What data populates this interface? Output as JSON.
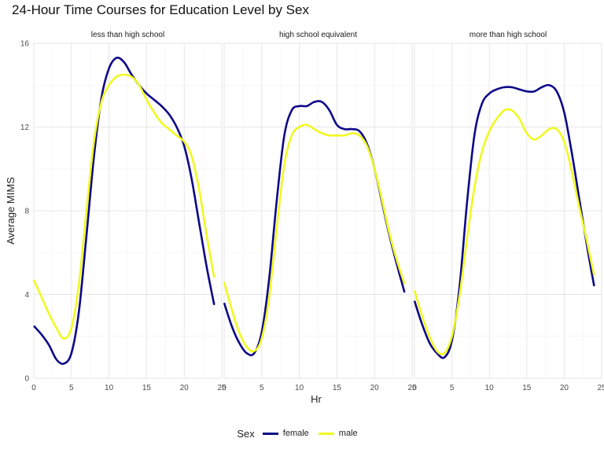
{
  "chart_data": {
    "type": "line",
    "title": "24-Hour Time Courses for Education Level by Sex",
    "xlabel": "Hr",
    "ylabel": "Average MIMS",
    "xlim": [
      0,
      25
    ],
    "ylim": [
      0,
      16
    ],
    "xticks": [
      "0",
      "5",
      "10",
      "15",
      "20",
      "25"
    ],
    "yticks": [
      "0",
      "4",
      "8",
      "12",
      "16"
    ],
    "grid": true,
    "legend": {
      "title": "Sex",
      "position": "bottom",
      "entries": [
        {
          "label": "female",
          "color": "#0d0887"
        },
        {
          "label": "male",
          "color": "#f0f921"
        }
      ]
    },
    "facets": [
      {
        "label": "less than high school",
        "series": [
          {
            "name": "female",
            "x": [
              0,
              1,
              2,
              3,
              4,
              5,
              6,
              7,
              8,
              9,
              10,
              11,
              12,
              13,
              14,
              15,
              16,
              17,
              18,
              19,
              20,
              21,
              22,
              23,
              24
            ],
            "y": [
              2.5,
              2.1,
              1.6,
              0.9,
              0.7,
              1.2,
              3.2,
              6.8,
              10.6,
              13.4,
              14.8,
              15.3,
              15.1,
              14.5,
              14.0,
              13.6,
              13.3,
              13.0,
              12.6,
              12.0,
              11.1,
              9.5,
              7.4,
              5.3,
              3.5
            ]
          },
          {
            "name": "male",
            "x": [
              0,
              1,
              2,
              3,
              4,
              5,
              6,
              7,
              8,
              9,
              10,
              11,
              12,
              13,
              14,
              15,
              16,
              17,
              18,
              19,
              20,
              21,
              22,
              23,
              24
            ],
            "y": [
              4.7,
              3.9,
              3.1,
              2.4,
              1.9,
              2.4,
              4.5,
              8.0,
              11.3,
              13.2,
              14.0,
              14.4,
              14.5,
              14.4,
              14.0,
              13.3,
              12.7,
              12.2,
              11.9,
              11.6,
              11.3,
              10.6,
              9.0,
              6.8,
              4.8
            ]
          }
        ]
      },
      {
        "label": "high school equivalent",
        "series": [
          {
            "name": "female",
            "x": [
              0,
              1,
              2,
              3,
              4,
              5,
              6,
              7,
              8,
              9,
              10,
              11,
              12,
              13,
              14,
              15,
              16,
              17,
              18,
              19,
              20,
              21,
              22,
              23,
              24
            ],
            "y": [
              3.6,
              2.5,
              1.7,
              1.2,
              1.2,
              2.2,
              4.8,
              8.5,
              11.6,
              12.8,
              13.0,
              13.0,
              13.2,
              13.2,
              12.8,
              12.1,
              11.9,
              11.9,
              11.8,
              11.2,
              10.0,
              8.4,
              6.8,
              5.4,
              4.1
            ]
          },
          {
            "name": "male",
            "x": [
              0,
              1,
              2,
              3,
              4,
              5,
              6,
              7,
              8,
              9,
              10,
              11,
              12,
              13,
              14,
              15,
              16,
              17,
              18,
              19,
              20,
              21,
              22,
              23,
              24
            ],
            "y": [
              4.6,
              3.3,
              2.2,
              1.5,
              1.3,
              1.9,
              3.9,
              7.2,
              10.2,
              11.6,
              12.0,
              12.1,
              11.9,
              11.7,
              11.6,
              11.6,
              11.6,
              11.7,
              11.6,
              11.1,
              10.0,
              8.5,
              6.9,
              5.6,
              4.5
            ]
          }
        ]
      },
      {
        "label": "more than high school",
        "series": [
          {
            "name": "female",
            "x": [
              0,
              1,
              2,
              3,
              4,
              5,
              6,
              7,
              8,
              9,
              10,
              11,
              12,
              13,
              14,
              15,
              16,
              17,
              18,
              19,
              20,
              21,
              22,
              23,
              24
            ],
            "y": [
              3.7,
              2.6,
              1.7,
              1.2,
              1.0,
              1.8,
              4.3,
              8.3,
              11.6,
              13.1,
              13.6,
              13.8,
              13.9,
              13.9,
              13.8,
              13.7,
              13.7,
              13.9,
              14.0,
              13.7,
              12.7,
              10.8,
              8.6,
              6.4,
              4.4
            ]
          },
          {
            "name": "male",
            "x": [
              0,
              1,
              2,
              3,
              4,
              5,
              6,
              7,
              8,
              9,
              10,
              11,
              12,
              13,
              14,
              15,
              16,
              17,
              18,
              19,
              20,
              21,
              22,
              23,
              24
            ],
            "y": [
              4.2,
              3.0,
              2.0,
              1.3,
              1.2,
              2.0,
              3.9,
              6.6,
              9.1,
              10.8,
              11.8,
              12.4,
              12.8,
              12.8,
              12.4,
              11.7,
              11.4,
              11.6,
              11.9,
              11.9,
              11.3,
              9.9,
              8.2,
              6.6,
              4.9
            ]
          }
        ]
      }
    ]
  }
}
